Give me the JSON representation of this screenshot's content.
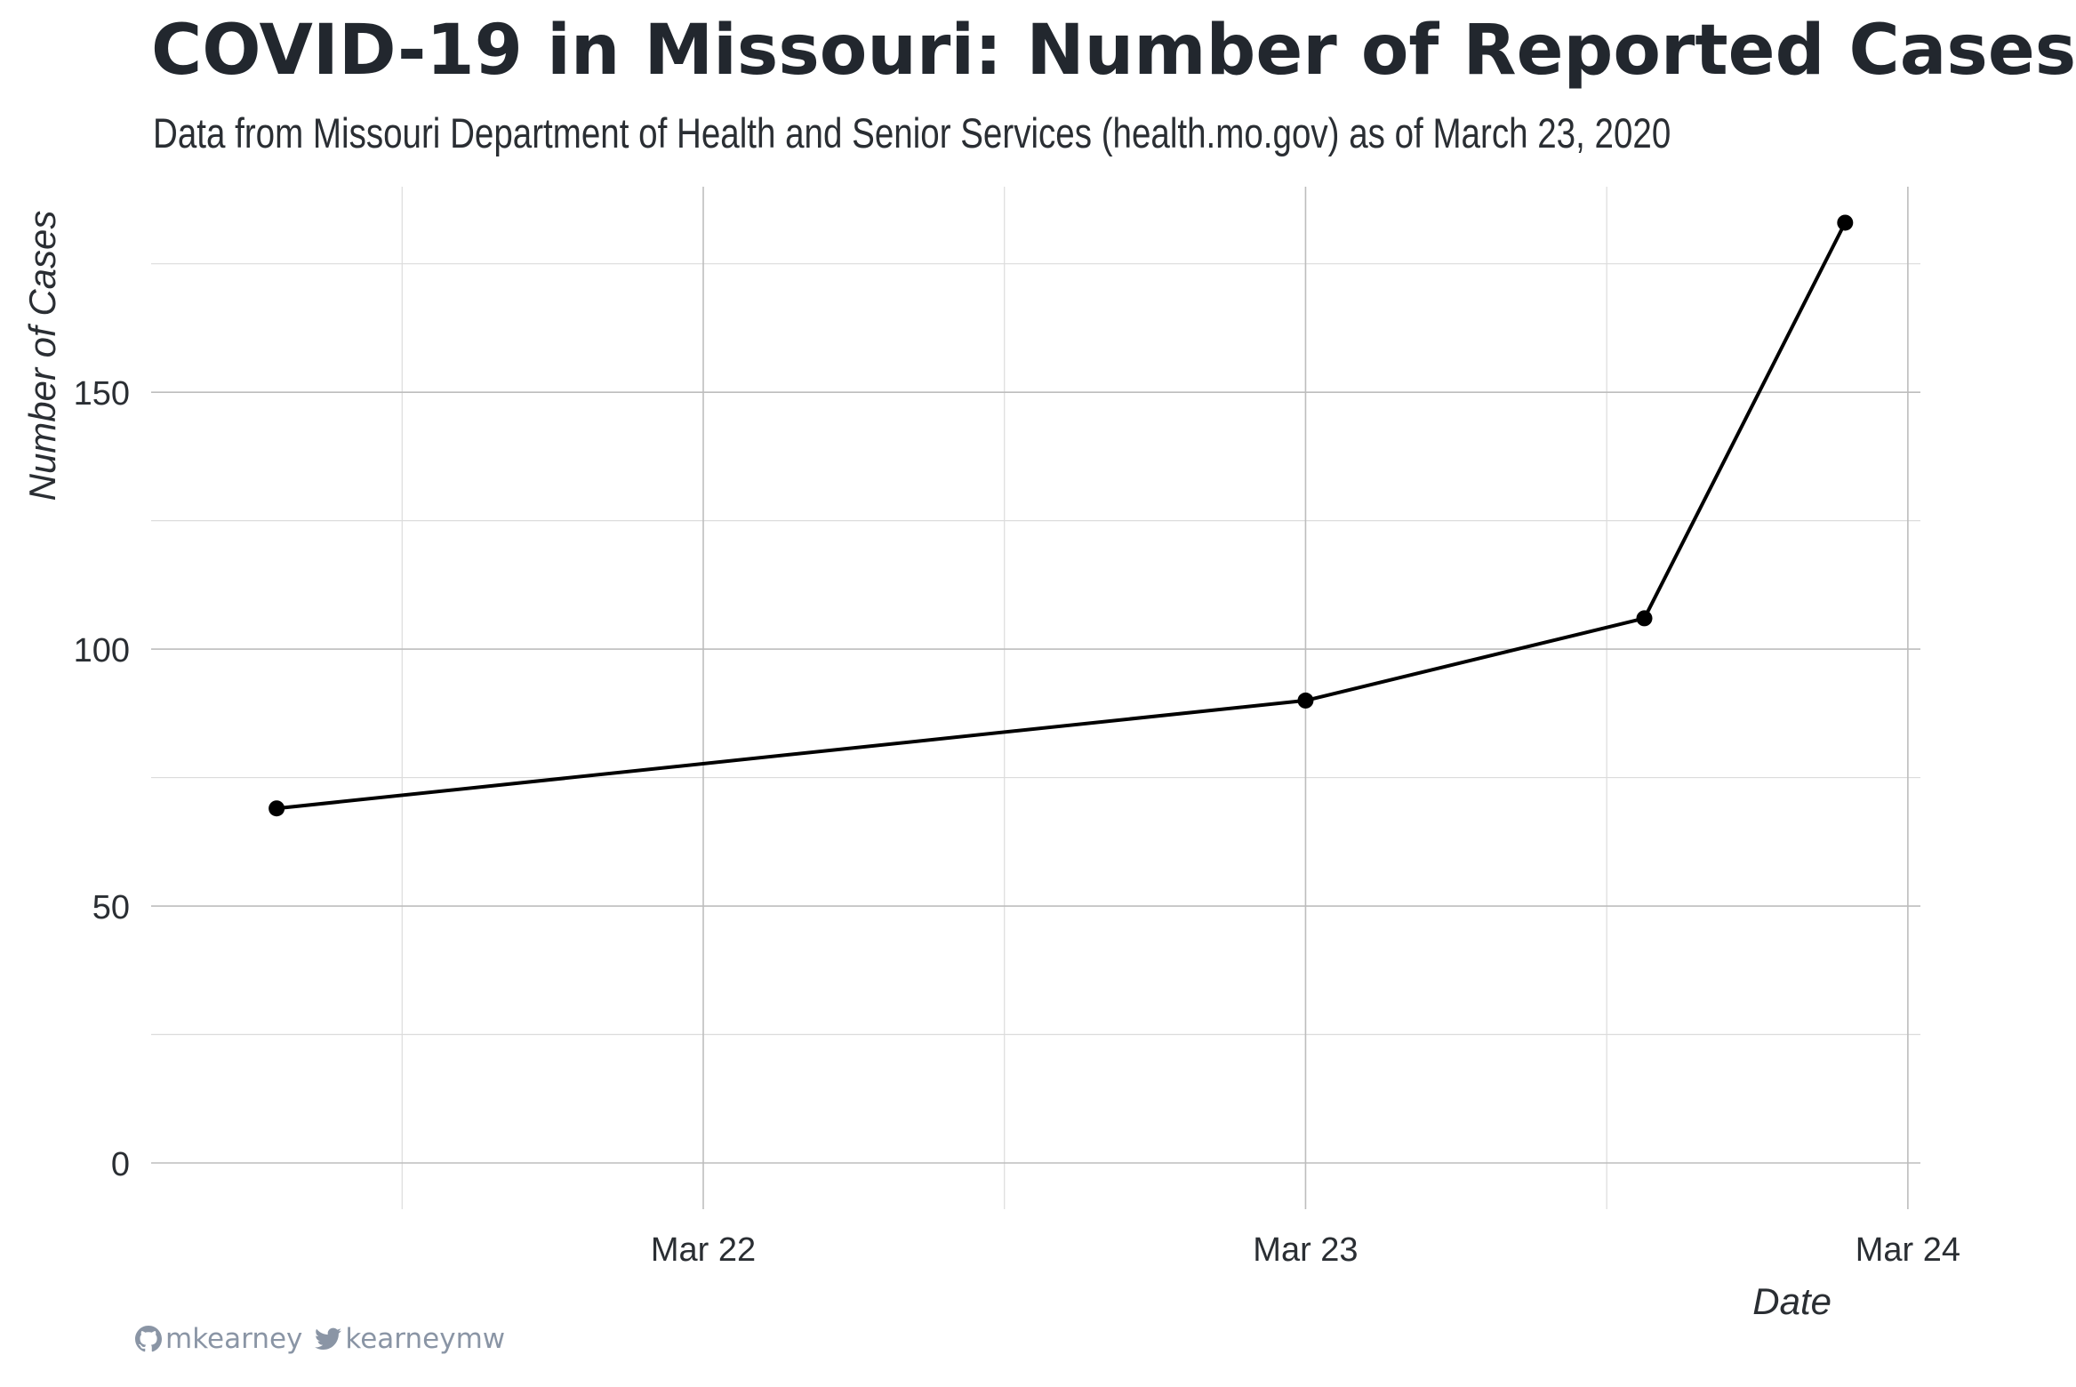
{
  "title": "COVID-19 in Missouri: Number of Reported Cases",
  "subtitle": "Data from Missouri Department of Health and Senior Services (health.mo.gov) as of March 23, 2020",
  "credits": {
    "github_icon": "github-icon",
    "github_handle": "mkearney",
    "twitter_icon": "twitter-icon",
    "twitter_handle": "kearneymw",
    "color": "#8a95a5"
  },
  "chart_data": {
    "type": "line",
    "xlabel": "Date",
    "ylabel": "Number of Cases",
    "x_ticks": [
      "Mar 22",
      "Mar 23",
      "Mar 24"
    ],
    "y_ticks": [
      0,
      50,
      100,
      150
    ],
    "xlim": [
      "2020-03-21 02:00",
      "2020-03-24 00:30"
    ],
    "ylim": [
      -9,
      190
    ],
    "series": [
      {
        "x": [
          "2020-03-21 07:00",
          "2020-03-23 00:00",
          "2020-03-23 13:30",
          "2020-03-23 21:30"
        ],
        "y": [
          69,
          90,
          106,
          183
        ],
        "color": "#000000"
      }
    ],
    "grid": true,
    "legend": "none"
  }
}
